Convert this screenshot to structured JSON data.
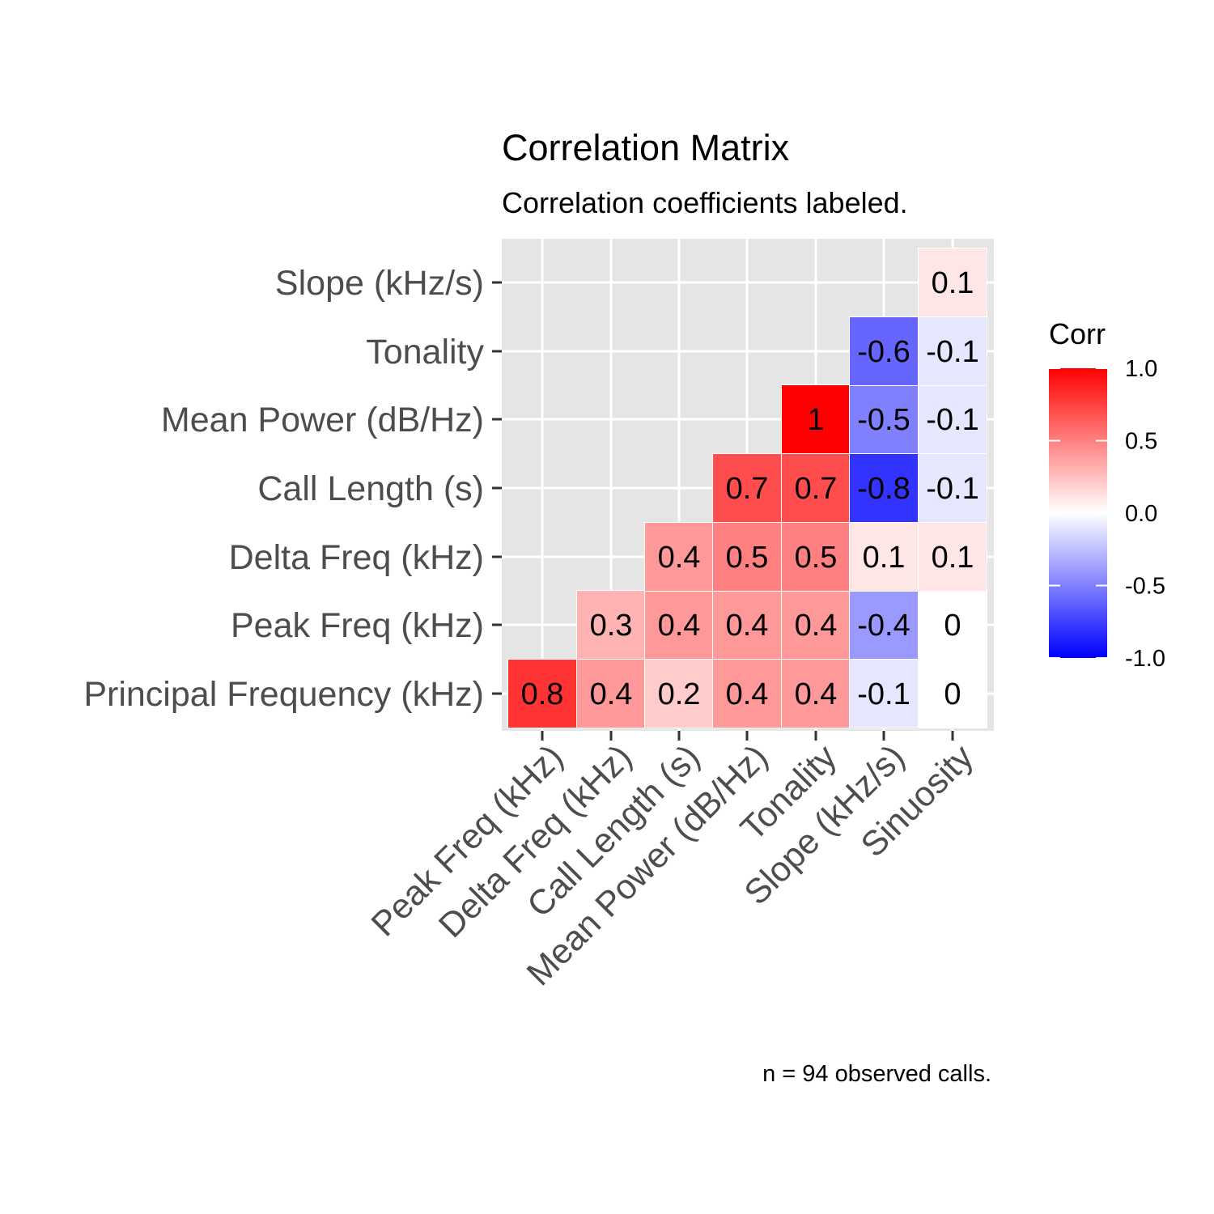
{
  "chart_data": {
    "type": "heatmap",
    "title": "Correlation Matrix",
    "subtitle": "Correlation coefficients labeled.",
    "caption": "n = 94 observed calls.",
    "x_categories": [
      "Peak Freq (kHz)",
      "Delta Freq (kHz)",
      "Call Length (s)",
      "Mean Power (dB/Hz)",
      "Tonality",
      "Slope (kHz/s)",
      "Sinuosity"
    ],
    "y_categories": [
      "Principal Frequency (kHz)",
      "Peak Freq (kHz)",
      "Delta Freq (kHz)",
      "Call Length (s)",
      "Mean Power (dB/Hz)",
      "Tonality",
      "Slope (kHz/s)"
    ],
    "cells": [
      {
        "x": "Peak Freq (kHz)",
        "y": "Principal Frequency (kHz)",
        "value": 0.8,
        "label": "0.8"
      },
      {
        "x": "Delta Freq (kHz)",
        "y": "Principal Frequency (kHz)",
        "value": 0.4,
        "label": "0.4"
      },
      {
        "x": "Call Length (s)",
        "y": "Principal Frequency (kHz)",
        "value": 0.2,
        "label": "0.2"
      },
      {
        "x": "Mean Power (dB/Hz)",
        "y": "Principal Frequency (kHz)",
        "value": 0.4,
        "label": "0.4"
      },
      {
        "x": "Tonality",
        "y": "Principal Frequency (kHz)",
        "value": 0.4,
        "label": "0.4"
      },
      {
        "x": "Slope (kHz/s)",
        "y": "Principal Frequency (kHz)",
        "value": -0.1,
        "label": "-0.1"
      },
      {
        "x": "Sinuosity",
        "y": "Principal Frequency (kHz)",
        "value": 0,
        "label": "0"
      },
      {
        "x": "Delta Freq (kHz)",
        "y": "Peak Freq (kHz)",
        "value": 0.3,
        "label": "0.3"
      },
      {
        "x": "Call Length (s)",
        "y": "Peak Freq (kHz)",
        "value": 0.4,
        "label": "0.4"
      },
      {
        "x": "Mean Power (dB/Hz)",
        "y": "Peak Freq (kHz)",
        "value": 0.4,
        "label": "0.4"
      },
      {
        "x": "Tonality",
        "y": "Peak Freq (kHz)",
        "value": 0.4,
        "label": "0.4"
      },
      {
        "x": "Slope (kHz/s)",
        "y": "Peak Freq (kHz)",
        "value": -0.4,
        "label": "-0.4"
      },
      {
        "x": "Sinuosity",
        "y": "Peak Freq (kHz)",
        "value": 0,
        "label": "0"
      },
      {
        "x": "Call Length (s)",
        "y": "Delta Freq (kHz)",
        "value": 0.4,
        "label": "0.4"
      },
      {
        "x": "Mean Power (dB/Hz)",
        "y": "Delta Freq (kHz)",
        "value": 0.5,
        "label": "0.5"
      },
      {
        "x": "Tonality",
        "y": "Delta Freq (kHz)",
        "value": 0.5,
        "label": "0.5"
      },
      {
        "x": "Slope (kHz/s)",
        "y": "Delta Freq (kHz)",
        "value": 0.1,
        "label": "0.1"
      },
      {
        "x": "Sinuosity",
        "y": "Delta Freq (kHz)",
        "value": 0.1,
        "label": "0.1"
      },
      {
        "x": "Mean Power (dB/Hz)",
        "y": "Call Length (s)",
        "value": 0.7,
        "label": "0.7"
      },
      {
        "x": "Tonality",
        "y": "Call Length (s)",
        "value": 0.7,
        "label": "0.7"
      },
      {
        "x": "Slope (kHz/s)",
        "y": "Call Length (s)",
        "value": -0.8,
        "label": "-0.8"
      },
      {
        "x": "Sinuosity",
        "y": "Call Length (s)",
        "value": -0.1,
        "label": "-0.1"
      },
      {
        "x": "Tonality",
        "y": "Mean Power (dB/Hz)",
        "value": 1,
        "label": "1"
      },
      {
        "x": "Slope (kHz/s)",
        "y": "Mean Power (dB/Hz)",
        "value": -0.5,
        "label": "-0.5"
      },
      {
        "x": "Sinuosity",
        "y": "Mean Power (dB/Hz)",
        "value": -0.1,
        "label": "-0.1"
      },
      {
        "x": "Slope (kHz/s)",
        "y": "Tonality",
        "value": -0.6,
        "label": "-0.6"
      },
      {
        "x": "Sinuosity",
        "y": "Tonality",
        "value": -0.1,
        "label": "-0.1"
      },
      {
        "x": "Sinuosity",
        "y": "Slope (kHz/s)",
        "value": 0.1,
        "label": "0.1"
      }
    ],
    "legend": {
      "title": "Corr",
      "ticks": [
        "1.0",
        "0.5",
        "0.0",
        "-0.5",
        "-1.0"
      ],
      "tick_values": [
        1,
        0.5,
        0,
        -0.5,
        -1
      ],
      "range": [
        -1,
        1
      ],
      "colors": {
        "low": "#0000FF",
        "mid": "#FFFFFF",
        "high": "#FF0000"
      },
      "position": "right"
    },
    "panel_background": "#E5E5E5",
    "grid": true
  }
}
